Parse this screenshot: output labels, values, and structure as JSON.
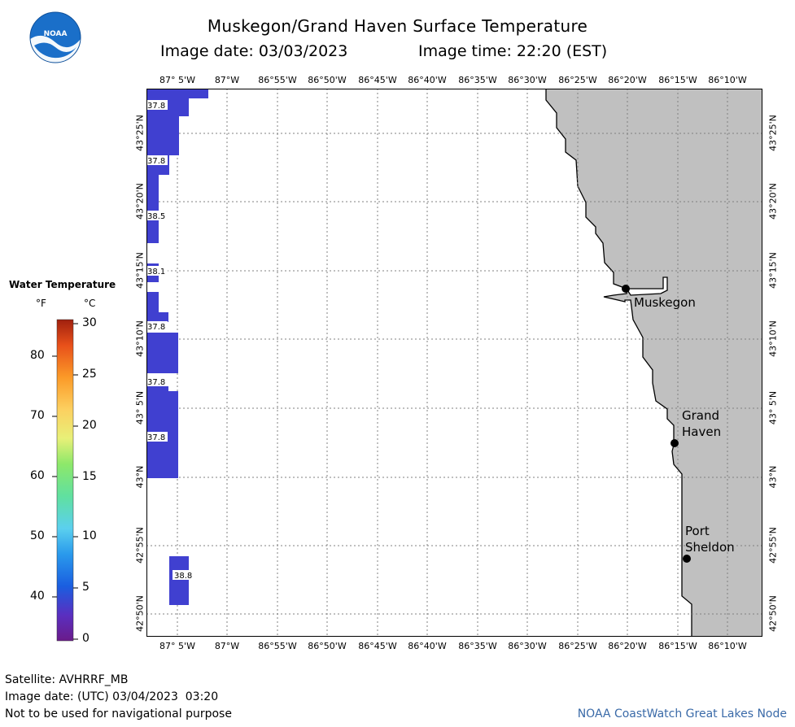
{
  "header": {
    "title": "Muskegon/Grand Haven Surface Temperature",
    "image_date": "Image date: 03/03/2023",
    "image_time": "Image time: 22:20 (EST)"
  },
  "logo": {
    "text": "NOAA",
    "icon": "noaa-logo-icon"
  },
  "map": {
    "lon_labels": [
      "87° 5'W",
      "87°W",
      "86°55'W",
      "86°50'W",
      "86°45'W",
      "86°40'W",
      "86°35'W",
      "86°30'W",
      "86°25'W",
      "86°20'W",
      "86°15'W",
      "86°10'W"
    ],
    "lat_labels": [
      "43°25'N",
      "43°20'N",
      "43°15'N",
      "43°10'N",
      "43° 5'N",
      "43°N",
      "42°55'N",
      "42°50'N"
    ],
    "pixel_labels": [
      "37.8",
      "37.8",
      "38.5",
      "38.1",
      "37.8",
      "37.8",
      "37.8",
      "38.8"
    ],
    "cities": [
      {
        "name": "Muskegon"
      },
      {
        "name": "Grand\nHaven"
      },
      {
        "name": "Port\nSheldon"
      }
    ],
    "colors": {
      "water": "#ffffff",
      "land": "#c0c0c0",
      "pixel": "#4040d0",
      "grid": "#808080"
    }
  },
  "legend": {
    "title": "Water Temperature",
    "unit_f": "°F",
    "unit_c": "°C",
    "f_ticks": [
      "80",
      "70",
      "60",
      "50",
      "40"
    ],
    "c_ticks": [
      "30",
      "25",
      "20",
      "15",
      "10",
      "5",
      "0"
    ]
  },
  "footer": {
    "satellite": "Satellite: AVHRRF_MB",
    "utc_date": "Image date: (UTC) 03/04/2023  03:20",
    "disclaimer": "Not to be used for navigational purpose",
    "credit": "NOAA CoastWatch Great Lakes Node"
  }
}
